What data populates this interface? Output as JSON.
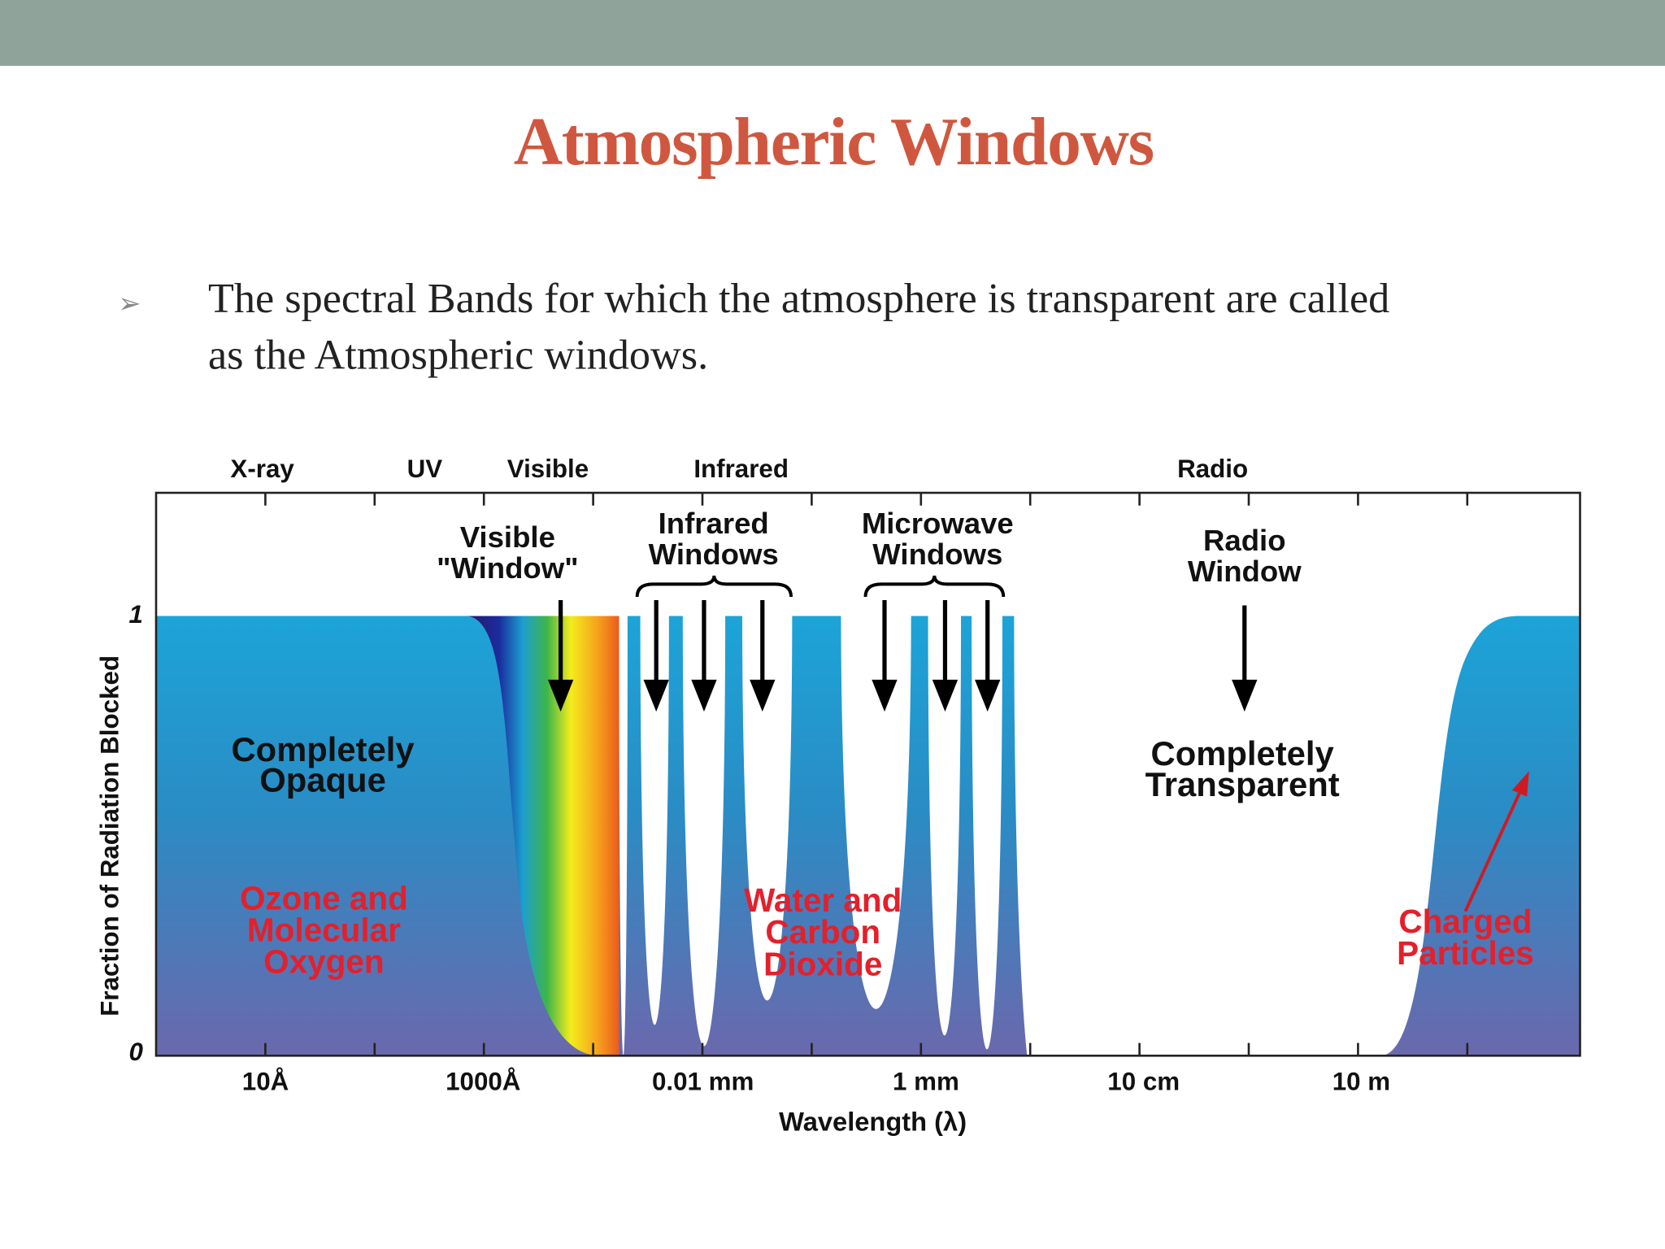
{
  "header": {
    "title": "Atmospheric Windows"
  },
  "bullet": {
    "lines": [
      "The spectral Bands for which the atmosphere is transparent are called",
      "as the Atmospheric windows."
    ]
  },
  "figure": {
    "band_labels": [
      "X-ray",
      "UV",
      "Visible",
      "Infrared",
      "Radio"
    ],
    "y_axis_label": "Fraction of Radiation Blocked",
    "y_ticks": [
      "1",
      "0"
    ],
    "x_ticks": [
      "10Å",
      "1000Å",
      "0.01 mm",
      "1 mm",
      "10 cm",
      "10 m"
    ],
    "x_axis_label": "Wavelength (λ)",
    "annotations": [
      {
        "lines": [
          "Visible",
          "\"Window\""
        ]
      },
      {
        "lines": [
          "Infrared",
          "Windows"
        ]
      },
      {
        "lines": [
          "Microwave",
          "Windows"
        ]
      },
      {
        "lines": [
          "Radio",
          "Window"
        ]
      },
      {
        "lines": [
          "Completely",
          "Opaque"
        ]
      },
      {
        "lines": [
          "Completely",
          "Transparent"
        ]
      }
    ],
    "red_notes": [
      {
        "lines": [
          "Ozone and",
          "Molecular",
          "Oxygen"
        ]
      },
      {
        "lines": [
          "Water and",
          "Carbon",
          "Dioxide"
        ]
      },
      {
        "lines": [
          "Charged",
          "Particles"
        ]
      }
    ]
  }
}
